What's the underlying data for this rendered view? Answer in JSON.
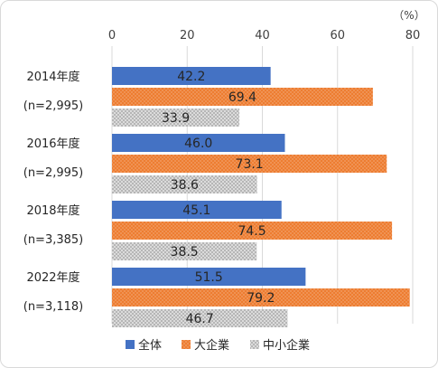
{
  "chart_data": {
    "type": "bar",
    "orientation": "horizontal",
    "title": "",
    "unit_label": "（%）",
    "xlim": [
      0,
      80
    ],
    "xticks": [
      0,
      20,
      40,
      60,
      80
    ],
    "gridlines": true,
    "categories": [
      {
        "year": "2014年度",
        "n": "(n=2,995)"
      },
      {
        "year": "2016年度",
        "n": "(n=2,995)"
      },
      {
        "year": "2018年度",
        "n": "(n=3,385)"
      },
      {
        "year": "2022年度",
        "n": "(n=3,118)"
      }
    ],
    "series": [
      {
        "name": "全体",
        "values": [
          42.2,
          46.0,
          45.1,
          51.5
        ],
        "labels": [
          "42.2",
          "46.0",
          "45.1",
          "51.5"
        ],
        "color": "#4472c4",
        "pattern": "solid"
      },
      {
        "name": "大企業",
        "values": [
          69.4,
          73.1,
          74.5,
          79.2
        ],
        "labels": [
          "69.4",
          "73.1",
          "74.5",
          "79.2"
        ],
        "color": "#ed7d31",
        "pattern": "dots"
      },
      {
        "name": "中小企業",
        "values": [
          33.9,
          38.6,
          38.5,
          46.7
        ],
        "labels": [
          "33.9",
          "38.6",
          "38.5",
          "46.7"
        ],
        "color": "#bfbfbf",
        "pattern": "crosshatch"
      }
    ],
    "legend_position": "bottom"
  }
}
